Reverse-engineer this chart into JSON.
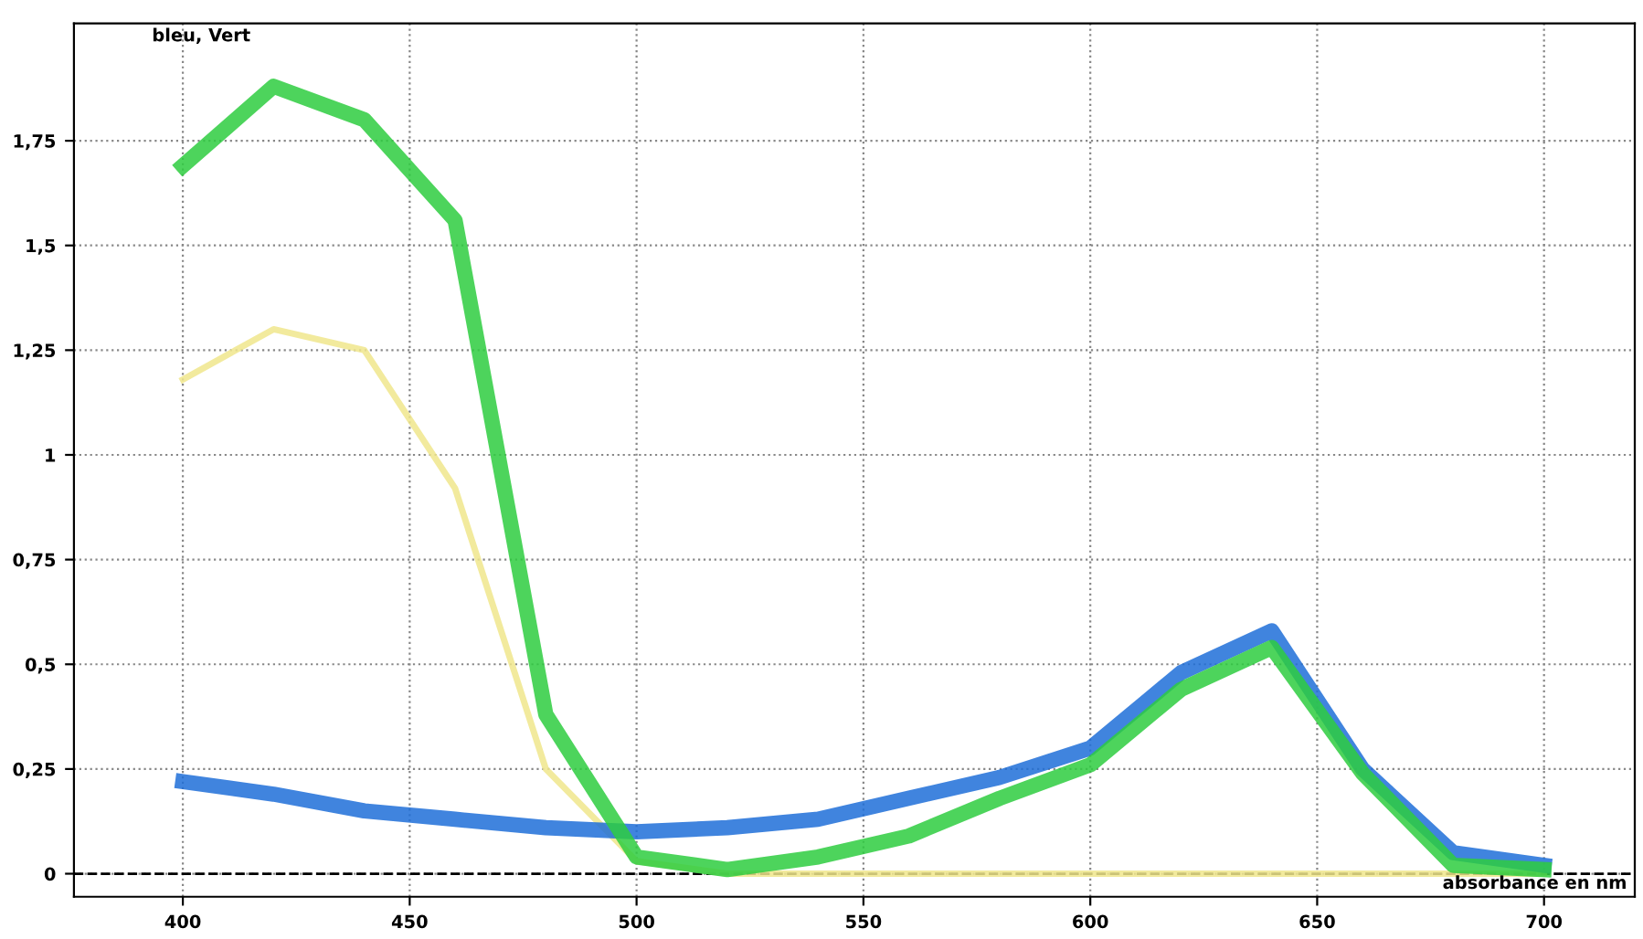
{
  "chart_data": {
    "type": "line",
    "xlabel": "absorbance en nm",
    "annotations": [
      "bleu, Vert"
    ],
    "x": [
      400,
      420,
      440,
      460,
      480,
      500,
      520,
      540,
      560,
      580,
      600,
      620,
      640,
      660,
      680,
      700
    ],
    "series": [
      {
        "color": "#f0e68c",
        "values": [
          1.18,
          1.3,
          1.25,
          0.92,
          0.25,
          0.03,
          0.0,
          0.0,
          0.0,
          0.0,
          0.0,
          0.0,
          0.0,
          0.0,
          0.0,
          0.0
        ]
      },
      {
        "color": "#1f6fd8",
        "values": [
          0.22,
          0.19,
          0.15,
          0.13,
          0.11,
          0.1,
          0.11,
          0.13,
          0.18,
          0.23,
          0.3,
          0.48,
          0.58,
          0.25,
          0.05,
          0.02
        ]
      },
      {
        "color": "#2ecc40",
        "values": [
          1.69,
          1.88,
          1.8,
          1.56,
          0.38,
          0.04,
          0.01,
          0.04,
          0.09,
          0.18,
          0.26,
          0.44,
          0.54,
          0.24,
          0.02,
          0.01
        ]
      }
    ],
    "xlim": [
      376,
      720
    ],
    "ylim": [
      -0.055,
      2.03
    ],
    "xticks": [
      400,
      450,
      500,
      550,
      600,
      650,
      700
    ],
    "yticks": [
      0,
      {
        "value": 0.25,
        "label": "0,25"
      },
      {
        "value": 0.5,
        "label": "0,5"
      },
      {
        "value": 0.75,
        "label": "0,75"
      },
      1,
      {
        "value": 1.25,
        "label": "1,25"
      },
      {
        "value": 1.5,
        "label": "1,5"
      },
      {
        "value": 1.75,
        "label": "1,75"
      }
    ],
    "ref_lines": [
      {
        "axis": "y",
        "value": 0,
        "color": "#000000",
        "line_style": "dashed"
      }
    ],
    "grid": true,
    "marker": "none",
    "line_style": "solid"
  }
}
